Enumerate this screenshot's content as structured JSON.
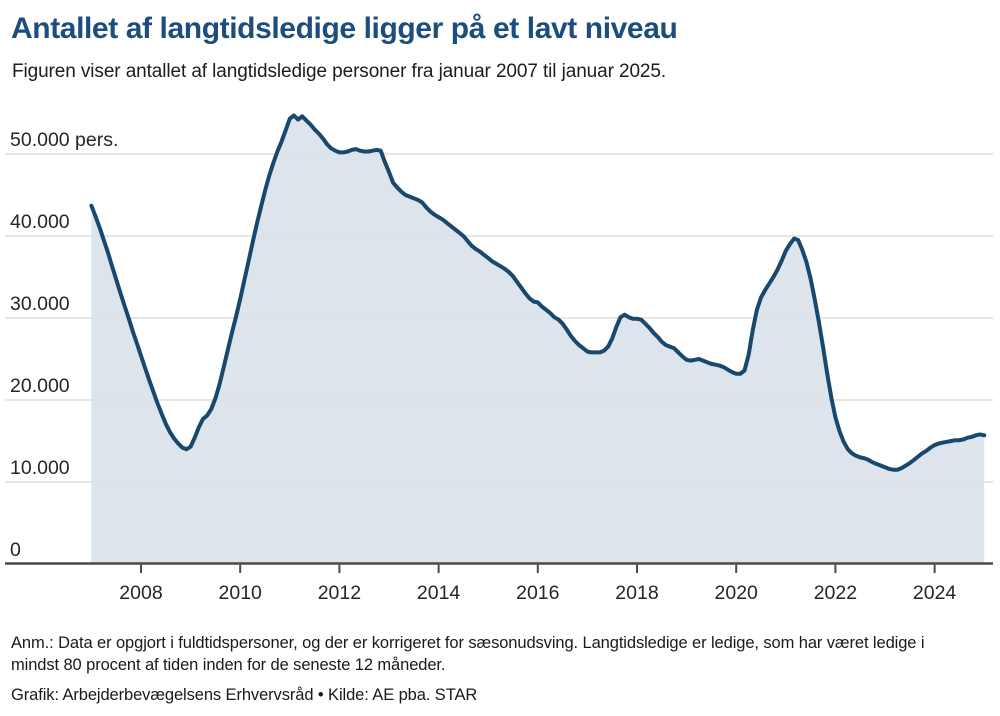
{
  "page": {
    "title": "Antallet af langtidsledige ligger på et lavt niveau",
    "subtitle": "Figuren viser antallet af langtidsledige personer fra januar 2007 til januar 2025.",
    "note": "Anm.: Data er opgjort i fuldtidspersoner, og der er korrigeret for sæsonudsving. Langtidsledige er ledige, som har været ledige i mindst 80 procent af tiden inden for de seneste 12 måneder.",
    "credit": "Grafik: Arbejderbevægelsens Erhvervsråd • Kilde: AE pba. STAR"
  },
  "colors": {
    "title": "#1b4d7e",
    "line": "#18486e",
    "area_fill": "#dae2e9",
    "gridline": "#d8d8d8",
    "axis": "#4a4a4a",
    "tick_label": "#262626",
    "text": "#1a1a19"
  },
  "chart_data": {
    "type": "area",
    "title": "Antallet af langtidsledige ligger på et lavt niveau",
    "subtitle": "Figuren viser antallet af langtidsledige personer fra januar 2007 til januar 2025.",
    "xlabel": "",
    "ylabel": "pers.",
    "x_range": [
      "2007-01",
      "2025-01"
    ],
    "interval": "monthly",
    "ylim": [
      0,
      55000
    ],
    "grid": true,
    "legend": "none",
    "y_ticks": [
      {
        "value": 0,
        "label": "0"
      },
      {
        "value": 10000,
        "label": "10.000"
      },
      {
        "value": 20000,
        "label": "20.000"
      },
      {
        "value": 30000,
        "label": "30.000"
      },
      {
        "value": 40000,
        "label": "40.000"
      },
      {
        "value": 50000,
        "label": "50.000 pers."
      }
    ],
    "x_ticks": [
      2008,
      2010,
      2012,
      2014,
      2016,
      2018,
      2020,
      2022,
      2024
    ],
    "series": [
      {
        "name": "Langtidsledige personer",
        "start": "2007-01",
        "values": [
          43700,
          42400,
          41000,
          39500,
          38000,
          36300,
          34700,
          33100,
          31500,
          30000,
          28400,
          26900,
          25400,
          23900,
          22400,
          21000,
          19600,
          18300,
          17100,
          16100,
          15300,
          14700,
          14200,
          14000,
          14300,
          15400,
          16700,
          17700,
          18100,
          18900,
          20200,
          21900,
          24000,
          26100,
          28200,
          30200,
          32300,
          34600,
          36900,
          39200,
          41400,
          43500,
          45500,
          47300,
          48900,
          50300,
          51500,
          52900,
          54300,
          54700,
          54200,
          54600,
          54100,
          53600,
          53000,
          52500,
          51900,
          51200,
          50700,
          50400,
          50200,
          50200,
          50300,
          50500,
          50600,
          50400,
          50300,
          50300,
          50400,
          50500,
          50400,
          49000,
          47800,
          46500,
          45900,
          45400,
          45000,
          44800,
          44600,
          44400,
          44100,
          43500,
          43000,
          42600,
          42300,
          42000,
          41600,
          41200,
          40800,
          40400,
          40000,
          39400,
          38800,
          38400,
          38100,
          37700,
          37300,
          36900,
          36600,
          36300,
          36000,
          35600,
          35100,
          34400,
          33700,
          33000,
          32400,
          32000,
          31900,
          31400,
          31000,
          30600,
          30100,
          29800,
          29300,
          28600,
          27800,
          27200,
          26700,
          26300,
          25900,
          25800,
          25800,
          25800,
          26000,
          26500,
          27500,
          28900,
          30100,
          30400,
          30100,
          29900,
          29900,
          29800,
          29300,
          28800,
          28200,
          27700,
          27100,
          26700,
          26500,
          26300,
          25800,
          25300,
          24900,
          24800,
          24900,
          25000,
          24800,
          24600,
          24400,
          24300,
          24200,
          24000,
          23700,
          23400,
          23200,
          23200,
          23600,
          25500,
          28500,
          31000,
          32500,
          33400,
          34200,
          35000,
          35900,
          37000,
          38200,
          39000,
          39700,
          39500,
          38300,
          36800,
          34800,
          32300,
          29500,
          26500,
          23300,
          20300,
          17900,
          16200,
          14900,
          14000,
          13500,
          13200,
          13000,
          12900,
          12700,
          12400,
          12200,
          12000,
          11800,
          11600,
          11500,
          11500,
          11700,
          12000,
          12300,
          12700,
          13100,
          13500,
          13800,
          14200,
          14500,
          14700,
          14800,
          14900,
          15000,
          15100,
          15100,
          15200,
          15400,
          15500,
          15700,
          15800,
          15700
        ]
      }
    ]
  }
}
